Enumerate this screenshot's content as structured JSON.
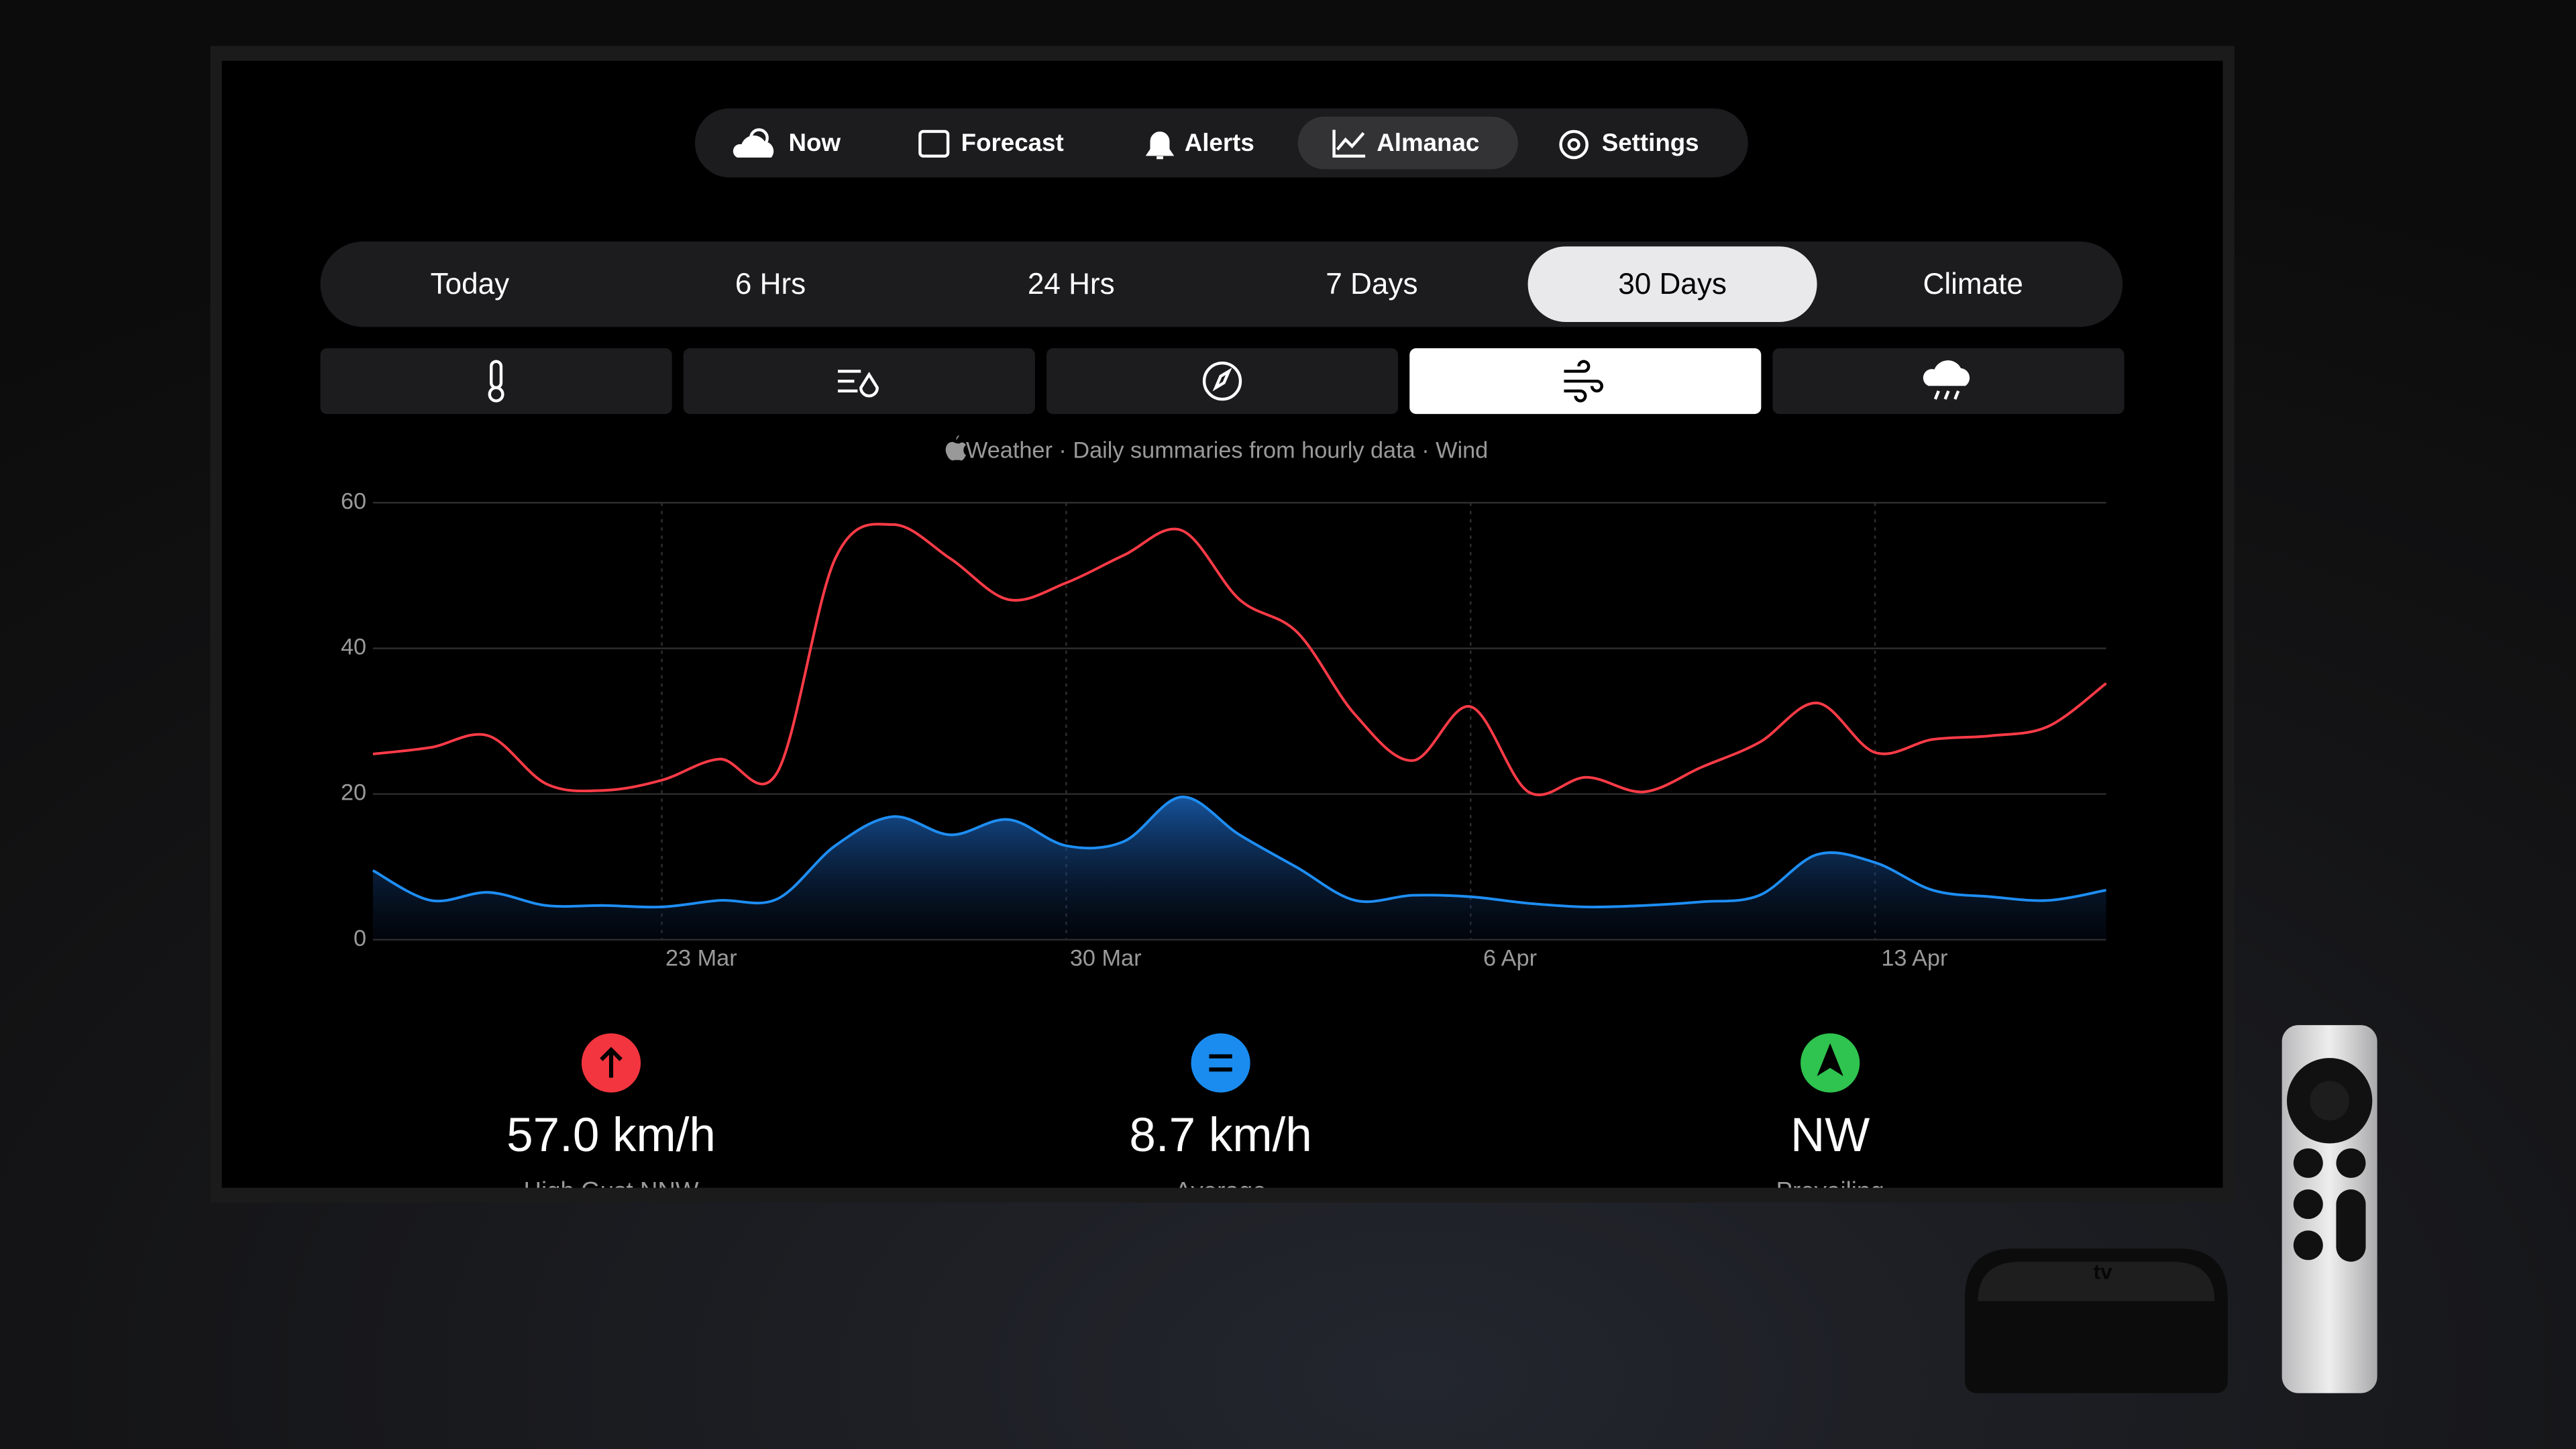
{
  "nav": {
    "items": [
      "Now",
      "Forecast",
      "Alerts",
      "Almanac",
      "Settings"
    ],
    "selected": 3
  },
  "ranges": {
    "items": [
      "Today",
      "6 Hrs",
      "24 Hrs",
      "7 Days",
      "30 Days",
      "Climate"
    ],
    "selected": 4
  },
  "metric_selected": 3,
  "caption": "Weather · Daily summaries from hourly data · Wind",
  "chart_data": {
    "type": "line",
    "categories": [
      null,
      null,
      null,
      null,
      null,
      "23 Mar",
      null,
      null,
      null,
      null,
      null,
      null,
      "30 Mar",
      null,
      null,
      null,
      null,
      null,
      null,
      "6 Apr",
      null,
      null,
      null,
      null,
      null,
      null,
      "13 Apr",
      null,
      null,
      null,
      null
    ],
    "series": [
      {
        "color": "#ff3b47",
        "values": [
          25.5,
          26.4,
          28,
          21.4,
          20.5,
          21.9,
          24.8,
          23,
          52.3,
          57,
          52.3,
          46.7,
          49,
          52.8,
          56.2,
          46.7,
          42.2,
          30.9,
          24.6,
          32,
          20.3,
          22.3,
          20.3,
          23.7,
          27.1,
          32.5,
          25.7,
          27.5,
          28,
          29.3,
          35.2
        ]
      },
      {
        "color": "#1e8ef5",
        "area": true,
        "values": [
          9.5,
          5.4,
          6.5,
          4.7,
          4.7,
          4.5,
          5.4,
          5.6,
          12.9,
          16.9,
          14.4,
          16.5,
          12.9,
          13.5,
          19.6,
          14.4,
          9.9,
          5.4,
          6.1,
          5.9,
          5,
          4.5,
          4.7,
          5.2,
          6.1,
          11.7,
          10.6,
          6.8,
          5.9,
          5.4,
          6.8
        ]
      }
    ],
    "ylim": [
      0,
      60
    ],
    "yticks": [
      0,
      20,
      40,
      60
    ],
    "grid": true
  },
  "stats": [
    {
      "value": "57.0 km/h",
      "label": "High Gust NNW",
      "color": "#f2353f"
    },
    {
      "value": "8.7 km/h",
      "label": "Average",
      "color": "#1a8cf0"
    },
    {
      "value": "NW",
      "label": "Prevailing",
      "color": "#2fc34f"
    }
  ],
  "device_label": "tv"
}
